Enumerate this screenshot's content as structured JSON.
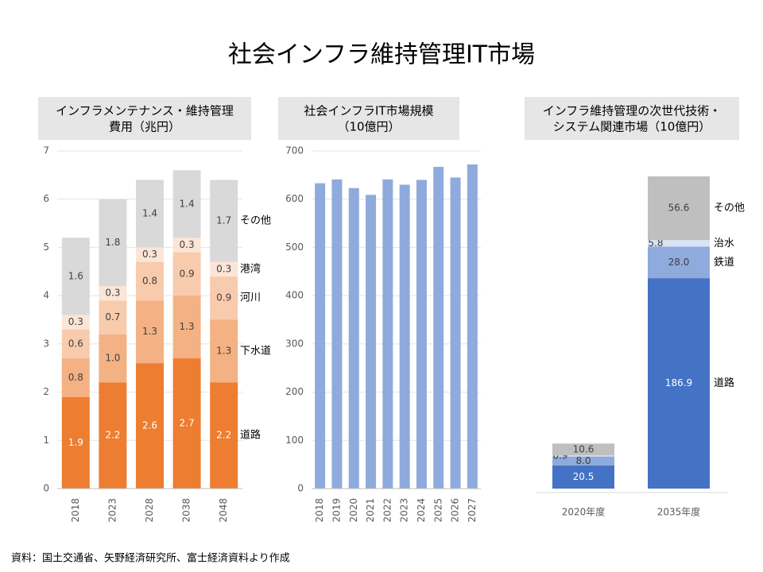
{
  "title": "社会インフラ維持管理IT市場",
  "source": "資料：国土交通省、矢野経済研究所、富士経済資料より作成",
  "chart_data": [
    {
      "type": "stacked_bar",
      "title": [
        "インフラメンテナンス・維持管理",
        "費用（兆円）"
      ],
      "categories": [
        "2018",
        "2023",
        "2028",
        "2038",
        "2048"
      ],
      "ylim": [
        0,
        7
      ],
      "yticks": [
        0,
        1,
        2,
        3,
        4,
        5,
        6,
        7
      ],
      "grid": true,
      "series": [
        {
          "name": "道路",
          "color": "#ed7d31",
          "values": [
            1.9,
            2.2,
            2.6,
            2.7,
            2.2
          ]
        },
        {
          "name": "下水道",
          "color": "#f4b183",
          "values": [
            0.8,
            1.0,
            1.3,
            1.3,
            1.3
          ],
          "value_labels": [
            "0.8",
            "1.0",
            "1.3",
            "1.3",
            "1.3"
          ]
        },
        {
          "name": "河川",
          "color": "#f8cbad",
          "values": [
            0.6,
            0.7,
            0.8,
            0.9,
            0.9
          ]
        },
        {
          "name": "港湾",
          "color": "#fbe5d6",
          "values": [
            0.3,
            0.3,
            0.3,
            0.3,
            0.3
          ]
        },
        {
          "name": "その他",
          "color": "#d9d9d9",
          "values": [
            1.6,
            1.8,
            1.4,
            1.4,
            1.7
          ]
        }
      ]
    },
    {
      "type": "bar",
      "title": [
        "社会インフラIT市場規模",
        "（10億円）"
      ],
      "categories": [
        "2018",
        "2019",
        "2020",
        "2021",
        "2022",
        "2023",
        "2024",
        "2025",
        "2026",
        "2027"
      ],
      "values": [
        633,
        641,
        623,
        609,
        641,
        630,
        640,
        667,
        645,
        672
      ],
      "color": "#8faadc",
      "ylim": [
        0,
        700
      ],
      "yticks": [
        0,
        100,
        200,
        300,
        400,
        500,
        600,
        700
      ],
      "grid": true
    },
    {
      "type": "stacked_bar",
      "title": [
        "インフラ維持管理の次世代技術・",
        "システム関連市場（10億円）"
      ],
      "categories": [
        "2020年度",
        "2035年度"
      ],
      "series": [
        {
          "name": "道路",
          "color": "#4472c4",
          "values": [
            20.5,
            186.9
          ]
        },
        {
          "name": "鉄道",
          "color": "#8faadc",
          "values": [
            8.0,
            28.0
          ],
          "value_labels": [
            "8.0",
            "28.0"
          ]
        },
        {
          "name": "治水",
          "color": "#dae3f3",
          "values": [
            0.9,
            5.8
          ]
        },
        {
          "name": "その他",
          "color": "#bfbfbf",
          "values": [
            10.6,
            56.6
          ]
        }
      ]
    }
  ]
}
